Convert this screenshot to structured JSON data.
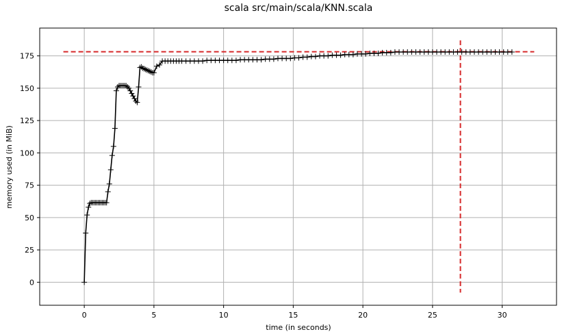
{
  "chart_data": {
    "type": "line",
    "title": "scala src/main/scala/KNN.scala",
    "xlabel": "time (in seconds)",
    "ylabel": "memory used (in MiB)",
    "xlim": [
      -3.2,
      33.9
    ],
    "ylim": [
      -17.8,
      196.5
    ],
    "xticks": [
      0,
      5,
      10,
      15,
      20,
      25,
      30
    ],
    "yticks": [
      0,
      25,
      50,
      75,
      100,
      125,
      150,
      175
    ],
    "grid": true,
    "colors": {
      "line": "#000000",
      "marker": "#000000",
      "reference": "#d62728",
      "grid": "#b0b0b0"
    },
    "marker": "+",
    "reference_lines": {
      "hline": {
        "y": 178.2,
        "x_range": [
          -1.5,
          32.3
        ]
      },
      "vline": {
        "x": 27.0,
        "y_range": [
          -8.0,
          187.0
        ]
      }
    },
    "series": [
      {
        "x": [
          0.0,
          0.1,
          0.2,
          0.3,
          0.4,
          0.5,
          0.6,
          0.7,
          0.8,
          0.9,
          1.0,
          1.1,
          1.2,
          1.3,
          1.4,
          1.5,
          1.6,
          1.7,
          1.8,
          1.9,
          2.0,
          2.1,
          2.2,
          2.3,
          2.4,
          2.5,
          2.6,
          2.7,
          2.8,
          2.9,
          3.0,
          3.1,
          3.2,
          3.3,
          3.4,
          3.5,
          3.6,
          3.7,
          3.8,
          3.9,
          4.0,
          4.1,
          4.2,
          4.3,
          4.4,
          4.5,
          4.6,
          4.7,
          4.8,
          4.9,
          5.0,
          5.2,
          5.4,
          5.6,
          5.8,
          6.0,
          6.2,
          6.4,
          6.6,
          6.8,
          7.0,
          7.3,
          7.6,
          7.9,
          8.2,
          8.5,
          8.8,
          9.1,
          9.4,
          9.7,
          10.0,
          10.3,
          10.6,
          10.9,
          11.2,
          11.5,
          11.8,
          12.1,
          12.4,
          12.7,
          13.0,
          13.3,
          13.6,
          13.9,
          14.2,
          14.5,
          14.8,
          15.1,
          15.4,
          15.7,
          16.0,
          16.3,
          16.6,
          16.9,
          17.2,
          17.5,
          17.8,
          18.1,
          18.4,
          18.7,
          19.0,
          19.3,
          19.6,
          19.9,
          20.2,
          20.5,
          20.8,
          21.1,
          21.4,
          21.7,
          22.0,
          22.3,
          22.6,
          22.9,
          23.2,
          23.5,
          23.8,
          24.1,
          24.4,
          24.7,
          25.0,
          25.3,
          25.6,
          25.9,
          26.2,
          26.5,
          26.8,
          27.1,
          27.4,
          27.7,
          28.0,
          28.3,
          28.6,
          28.9,
          29.2,
          29.5,
          29.8,
          30.1,
          30.4,
          30.7
        ],
        "values": [
          0,
          38,
          52,
          58,
          61,
          61.5,
          61.5,
          61.5,
          61.5,
          61.5,
          61.5,
          61.5,
          61.5,
          61.5,
          61.5,
          61.5,
          61.5,
          70,
          76,
          87,
          98,
          105,
          119,
          148,
          151,
          152,
          152,
          152,
          152,
          152,
          152,
          151,
          150,
          148,
          146,
          144,
          142,
          140,
          139,
          151,
          166,
          166.5,
          165.5,
          165,
          164.5,
          164,
          163.5,
          163,
          162.5,
          162,
          162,
          167,
          168,
          171,
          171,
          171,
          171,
          171,
          171,
          171,
          171,
          171,
          171,
          171,
          171,
          171,
          171.5,
          171.5,
          171.5,
          171.5,
          171.5,
          171.5,
          171.5,
          171.5,
          172,
          172,
          172,
          172,
          172,
          172,
          172.5,
          172.5,
          172.5,
          173,
          173,
          173,
          173,
          173.5,
          173.5,
          174,
          174,
          174.5,
          174.5,
          175,
          175,
          175,
          175.5,
          175.5,
          175.5,
          176,
          176,
          176,
          176.5,
          176.5,
          176.5,
          177,
          177,
          177,
          177.5,
          177.5,
          177.5,
          178,
          178,
          178,
          178,
          178,
          178,
          178,
          178,
          178,
          178,
          178,
          178,
          178,
          178,
          178,
          178,
          178,
          178,
          178,
          178,
          178,
          178,
          178,
          178,
          178,
          178,
          178,
          178,
          178
        ]
      }
    ]
  }
}
